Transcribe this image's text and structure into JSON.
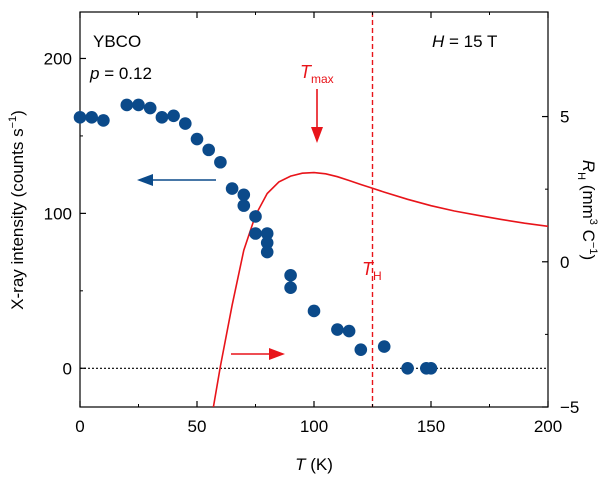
{
  "chart_data": {
    "type": "scatter",
    "x_axis": {
      "label_italic": "T",
      "label_rest": " (K)",
      "range": [
        0,
        200
      ],
      "ticks": [
        0,
        50,
        100,
        150,
        200
      ]
    },
    "y_left": {
      "label_pre": "X-ray intensity (counts s",
      "label_sup": "−1",
      "label_post": ")",
      "range": [
        -25,
        230
      ],
      "ticks": [
        0,
        100,
        200
      ]
    },
    "y_right": {
      "label_italic": "R",
      "label_sub": "H",
      "label_mid": " (mm",
      "label_sup3": "3",
      "label_c": " C",
      "label_sup_neg": "−1",
      "label_post": ")",
      "range": [
        -5,
        8.6
      ],
      "ticks": [
        -5,
        0,
        5
      ],
      "tick_labels": [
        "−5",
        "0",
        "5"
      ]
    },
    "series": [
      {
        "axis": "left",
        "type": "scatter",
        "color": "#0b4a8a",
        "points": [
          [
            0,
            162
          ],
          [
            5,
            162
          ],
          [
            10,
            160
          ],
          [
            20,
            170
          ],
          [
            25,
            170
          ],
          [
            30,
            168
          ],
          [
            35,
            162
          ],
          [
            40,
            163
          ],
          [
            45,
            158
          ],
          [
            50,
            148
          ],
          [
            55,
            141
          ],
          [
            60,
            133
          ],
          [
            65,
            116
          ],
          [
            70,
            112
          ],
          [
            70,
            105
          ],
          [
            75,
            98
          ],
          [
            75,
            87
          ],
          [
            80,
            87
          ],
          [
            80,
            81
          ],
          [
            80,
            75
          ],
          [
            90,
            60
          ],
          [
            90,
            52
          ],
          [
            100,
            37
          ],
          [
            110,
            25
          ],
          [
            115,
            24
          ],
          [
            120,
            12
          ],
          [
            130,
            14
          ],
          [
            140,
            0
          ],
          [
            148,
            0
          ],
          [
            150,
            0
          ]
        ]
      },
      {
        "axis": "right",
        "type": "line",
        "color": "#e8141a",
        "points": [
          [
            57,
            -5
          ],
          [
            60,
            -3.6
          ],
          [
            65,
            -1.5
          ],
          [
            70,
            0.4
          ],
          [
            75,
            1.6
          ],
          [
            80,
            2.35
          ],
          [
            85,
            2.75
          ],
          [
            90,
            2.95
          ],
          [
            95,
            3.05
          ],
          [
            100,
            3.07
          ],
          [
            105,
            3.03
          ],
          [
            110,
            2.93
          ],
          [
            115,
            2.8
          ],
          [
            120,
            2.66
          ],
          [
            125,
            2.53
          ],
          [
            130,
            2.4
          ],
          [
            140,
            2.15
          ],
          [
            150,
            1.93
          ],
          [
            160,
            1.75
          ],
          [
            170,
            1.6
          ],
          [
            180,
            1.46
          ],
          [
            190,
            1.33
          ],
          [
            200,
            1.22
          ]
        ]
      }
    ],
    "vline_x": 125,
    "zero_line_y": 0,
    "annotations": {
      "sample": "YBCO",
      "doping_italic": "p",
      "doping_rest": " = 0.12",
      "field_italic": "H",
      "field_rest": " = 15 T",
      "tmax_italic": "T",
      "tmax_sub": "max",
      "th_italic": "T",
      "th_sub": "H"
    },
    "colors": {
      "data_blue": "#0b4a8a",
      "curve_red": "#e8141a",
      "axis": "#000000"
    }
  }
}
